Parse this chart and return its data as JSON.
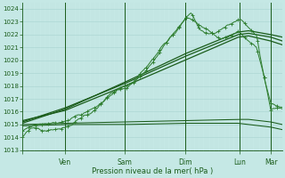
{
  "xlabel": "Pression niveau de la mer( hPa )",
  "ylim": [
    1013,
    1024.5
  ],
  "yticks": [
    1013,
    1014,
    1015,
    1016,
    1017,
    1018,
    1019,
    1020,
    1021,
    1022,
    1023,
    1024
  ],
  "background_color": "#c5e8e5",
  "grid_color_major": "#a8d4d0",
  "grid_color_minor": "#bde0dc",
  "line_color_dark": "#1a5c1a",
  "line_color_mid": "#2e7d2e",
  "figsize": [
    3.2,
    2.0
  ],
  "dpi": 100,
  "xlim": [
    0,
    1
  ],
  "day_positions": [
    0.0,
    0.165,
    0.395,
    0.625,
    0.835,
    0.955
  ],
  "day_labels": [
    "",
    "Ven",
    "Sam",
    "Dim",
    "Lun",
    "Mar"
  ]
}
